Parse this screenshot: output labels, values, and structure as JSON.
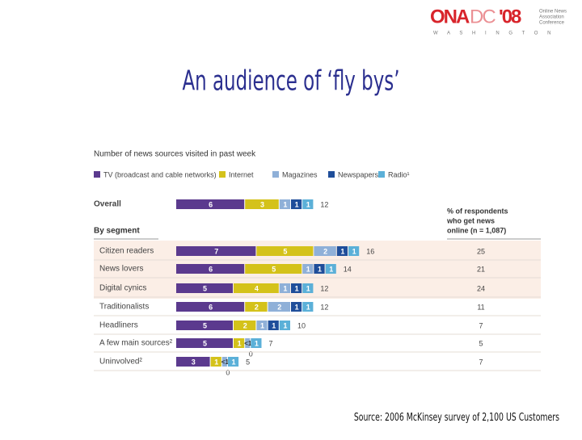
{
  "logo": {
    "ona": "ONA",
    "dc": "DC",
    "year": "'08",
    "line1": "Online News",
    "line2": "Association",
    "line3": "Conference",
    "city": "W A S H I N G T O N"
  },
  "title": "An audience of ‘fly bys’",
  "source": "Source: 2006 McKinsey survey of 2,100 US Customers",
  "chart_data": {
    "type": "bar",
    "orientation": "horizontal",
    "stacked": true,
    "subtitle": "Number of news sources visited in past week",
    "section_label": "By segment",
    "pct_header": [
      "% of respondents",
      "who get news",
      "online (n = 1,087)"
    ],
    "categories": [
      "Overall",
      "Citizen readers",
      "News lovers",
      "Digital cynics",
      "Traditionalists",
      "Headliners",
      "A few main sources²",
      "Uninvolved²"
    ],
    "series": [
      {
        "name": "TV (broadcast and cable networks)",
        "color": "#5b3a8e",
        "values": [
          6,
          7,
          6,
          5,
          6,
          5,
          5,
          3
        ]
      },
      {
        "name": "Internet",
        "color": "#d4c21a",
        "values": [
          3,
          5,
          5,
          4,
          2,
          2,
          1,
          1
        ]
      },
      {
        "name": "Magazines",
        "color": "#8fb0d8",
        "values": [
          1,
          2,
          1,
          1,
          2,
          1,
          0.5,
          0.5
        ],
        "value_labels": [
          "1",
          "2",
          "1",
          "1",
          "2",
          "1",
          "<1",
          "<1"
        ]
      },
      {
        "name": "Newspapers",
        "color": "#1f4e9a",
        "values": [
          1,
          1,
          1,
          1,
          1,
          1,
          0,
          0
        ]
      },
      {
        "name": "Radio¹",
        "color": "#5bb0d8",
        "values": [
          1,
          1,
          1,
          1,
          1,
          1,
          1,
          1
        ]
      }
    ],
    "totals": [
      12,
      16,
      14,
      12,
      12,
      10,
      7,
      5
    ],
    "online_pct": [
      null,
      25,
      21,
      24,
      11,
      7,
      5,
      7
    ]
  }
}
